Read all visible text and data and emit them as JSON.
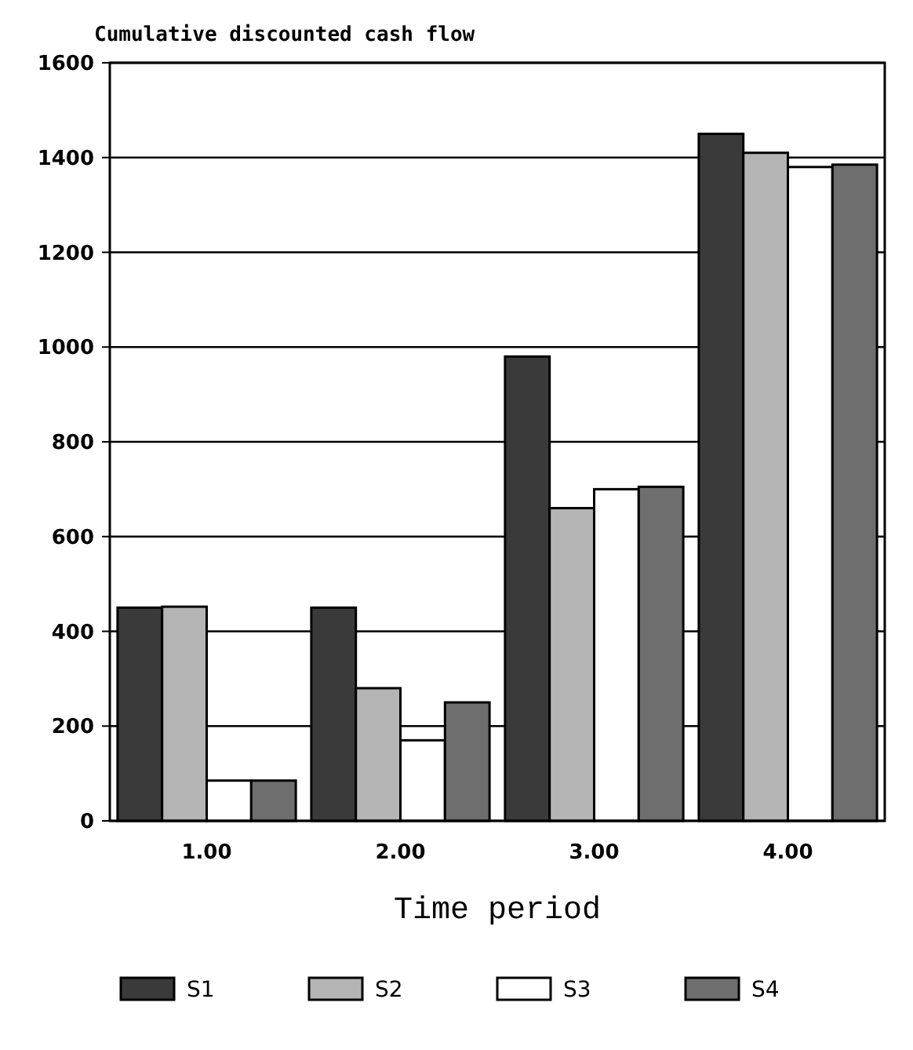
{
  "chart_data": {
    "type": "bar",
    "title": "Cumulative discounted cash flow",
    "xlabel": "Time period",
    "categories": [
      "1.00",
      "2.00",
      "3.00",
      "4.00"
    ],
    "series": [
      {
        "name": "S1",
        "color": "#3a3a3a",
        "values": [
          450,
          450,
          980,
          1450
        ]
      },
      {
        "name": "S2",
        "color": "#b4b4b4",
        "values": [
          452,
          280,
          660,
          1410
        ]
      },
      {
        "name": "S3",
        "color": "#ffffff",
        "values": [
          85,
          170,
          700,
          1380
        ]
      },
      {
        "name": "S4",
        "color": "#6e6e6e",
        "values": [
          85,
          250,
          705,
          1385
        ]
      }
    ],
    "ylim": [
      0,
      1600
    ],
    "yticks": [
      0,
      200,
      400,
      600,
      800,
      1000,
      1200,
      1400,
      1600
    ],
    "grid": "y",
    "legend": "bottom"
  }
}
